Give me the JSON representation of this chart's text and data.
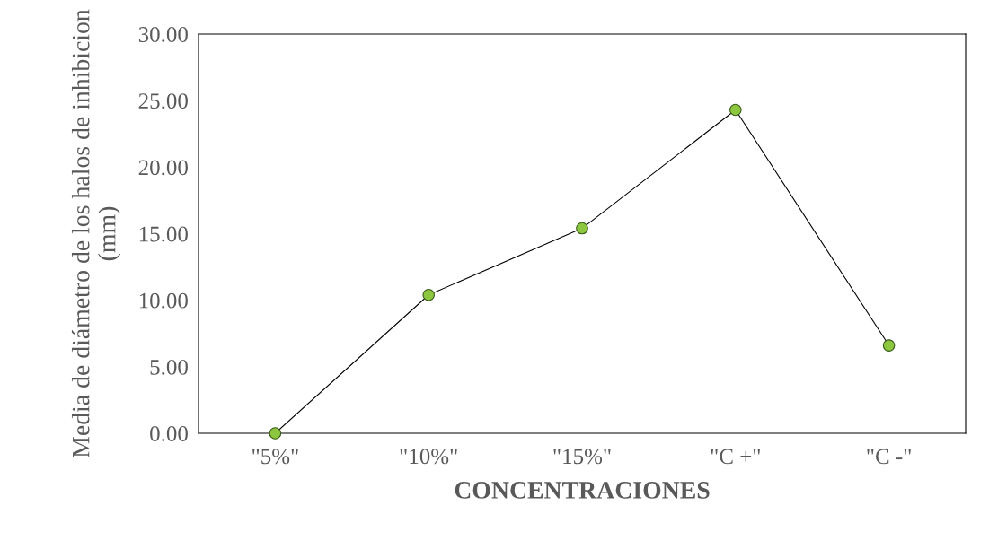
{
  "chart_data": {
    "type": "line",
    "xlabel": "CONCENTRACIONES",
    "ylabel": "Media de diámetro de los halos de inhibicion (mm)",
    "categories": [
      "\"5%\"",
      "\"10%\"",
      "\"15%\"",
      "\"C +\"",
      "\"C -\""
    ],
    "series": [
      {
        "color": "#8dc63f",
        "values": [
          0.0,
          10.4,
          15.4,
          24.3,
          6.6
        ]
      }
    ],
    "ylim": [
      0,
      30
    ],
    "yticks": [
      {
        "value": 0,
        "label": "0.00"
      },
      {
        "value": 5,
        "label": "5.00"
      },
      {
        "value": 10,
        "label": "10.00"
      },
      {
        "value": 15,
        "label": "15.00"
      },
      {
        "value": 20,
        "label": "20.00"
      },
      {
        "value": 25,
        "label": "25.00"
      },
      {
        "value": 30,
        "label": "30.00"
      }
    ],
    "marker": "circle",
    "line_style": "solid",
    "grid": false,
    "legend": false
  }
}
